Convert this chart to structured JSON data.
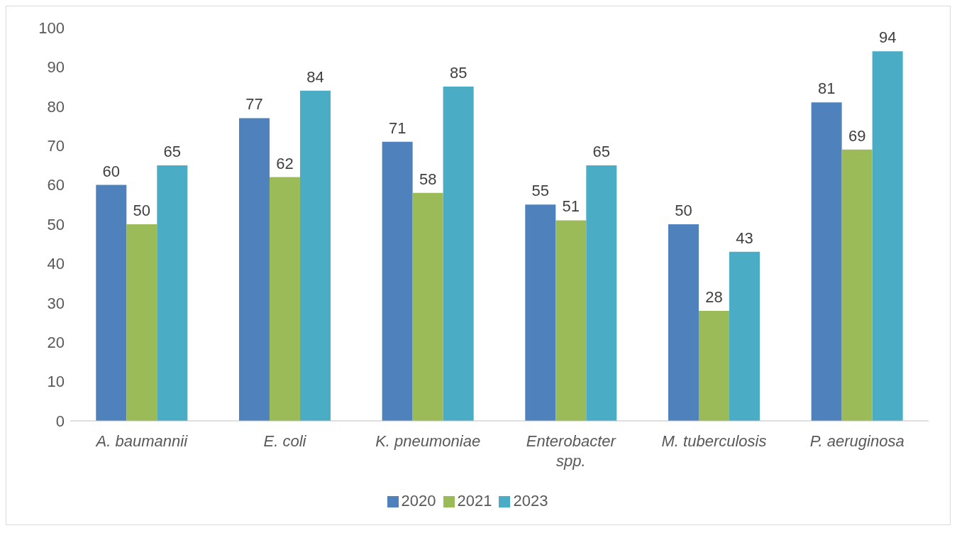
{
  "chart_data": {
    "type": "bar",
    "categories": [
      "A. baumannii",
      "E. coli",
      "K. pneumoniae",
      "Enterobacter spp.",
      "M. tuberculosis",
      "P. aeruginosa"
    ],
    "series": [
      {
        "name": "2020",
        "color": "#4f81bd",
        "values": [
          60,
          77,
          71,
          55,
          50,
          81
        ]
      },
      {
        "name": "2021",
        "color": "#9bbb59",
        "values": [
          50,
          62,
          58,
          51,
          28,
          69
        ]
      },
      {
        "name": "2023",
        "color": "#4bacc6",
        "values": [
          65,
          84,
          85,
          65,
          43,
          94
        ]
      }
    ],
    "ylim": [
      0,
      100
    ],
    "yticks": [
      0,
      10,
      20,
      30,
      40,
      50,
      60,
      70,
      80,
      90,
      100
    ],
    "data_labels": true,
    "legend": "bottom"
  }
}
